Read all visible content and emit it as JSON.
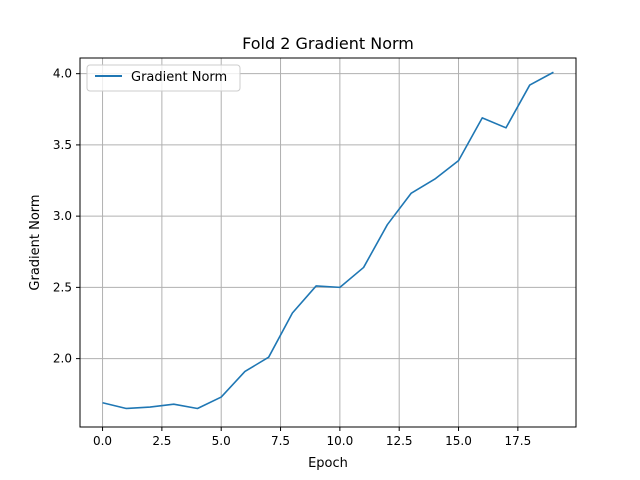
{
  "chart_data": {
    "type": "line",
    "title": "Fold 2 Gradient Norm",
    "xlabel": "Epoch",
    "ylabel": "Gradient Norm",
    "xlim": [
      -0.95,
      19.95
    ],
    "ylim": [
      1.52,
      4.11
    ],
    "grid": true,
    "legend_position": "top-left",
    "x_ticks": [
      0.0,
      2.5,
      5.0,
      7.5,
      10.0,
      12.5,
      15.0,
      17.5
    ],
    "x_tick_labels": [
      "0.0",
      "2.5",
      "5.0",
      "7.5",
      "10.0",
      "12.5",
      "15.0",
      "17.5"
    ],
    "y_ticks": [
      2.0,
      2.5,
      3.0,
      3.5,
      4.0
    ],
    "y_tick_labels": [
      "2.0",
      "2.5",
      "3.0",
      "3.5",
      "4.0"
    ],
    "series": [
      {
        "name": "Gradient Norm",
        "color": "#1f77b4",
        "x": [
          0,
          1,
          2,
          3,
          4,
          5,
          6,
          7,
          8,
          9,
          10,
          11,
          12,
          13,
          14,
          15,
          16,
          17,
          18,
          19
        ],
        "values": [
          1.69,
          1.65,
          1.66,
          1.68,
          1.65,
          1.73,
          1.91,
          2.01,
          2.32,
          2.51,
          2.5,
          2.64,
          2.94,
          3.16,
          3.26,
          3.39,
          3.69,
          3.62,
          3.92,
          4.01
        ]
      }
    ]
  }
}
